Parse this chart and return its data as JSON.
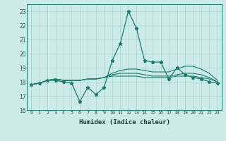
{
  "x": [
    0,
    1,
    2,
    3,
    4,
    5,
    6,
    7,
    8,
    9,
    10,
    11,
    12,
    13,
    14,
    15,
    16,
    17,
    18,
    19,
    20,
    21,
    22,
    23
  ],
  "line1": [
    17.8,
    17.9,
    18.1,
    18.1,
    18.0,
    17.9,
    16.6,
    17.6,
    17.1,
    17.6,
    19.5,
    20.7,
    23.0,
    21.8,
    19.5,
    19.4,
    19.4,
    18.2,
    19.0,
    18.5,
    18.3,
    18.2,
    18.0,
    17.9
  ],
  "line2": [
    17.8,
    17.9,
    18.1,
    18.2,
    18.1,
    18.1,
    18.1,
    18.2,
    18.2,
    18.3,
    18.4,
    18.4,
    18.4,
    18.4,
    18.3,
    18.3,
    18.3,
    18.3,
    18.4,
    18.4,
    18.4,
    18.3,
    18.2,
    18.0
  ],
  "line3": [
    17.8,
    17.9,
    18.1,
    18.2,
    18.1,
    18.1,
    18.1,
    18.2,
    18.2,
    18.3,
    18.5,
    18.6,
    18.6,
    18.6,
    18.5,
    18.4,
    18.4,
    18.4,
    18.5,
    18.6,
    18.6,
    18.5,
    18.3,
    18.0
  ],
  "line4": [
    17.8,
    17.9,
    18.1,
    18.2,
    18.1,
    18.1,
    18.1,
    18.2,
    18.2,
    18.3,
    18.6,
    18.8,
    18.9,
    18.9,
    18.8,
    18.7,
    18.7,
    18.7,
    18.9,
    19.1,
    19.1,
    18.9,
    18.6,
    18.1
  ],
  "color_main": "#1a7a6e",
  "background": "#cceae7",
  "grid_color": "#aad4d0",
  "xlabel": "Humidex (Indice chaleur)",
  "ylim": [
    16,
    23.5
  ],
  "xlim": [
    -0.5,
    23.5
  ],
  "yticks": [
    16,
    17,
    18,
    19,
    20,
    21,
    22,
    23
  ],
  "xticks": [
    0,
    1,
    2,
    3,
    4,
    5,
    6,
    7,
    8,
    9,
    10,
    11,
    12,
    13,
    14,
    15,
    16,
    17,
    18,
    19,
    20,
    21,
    22,
    23
  ]
}
